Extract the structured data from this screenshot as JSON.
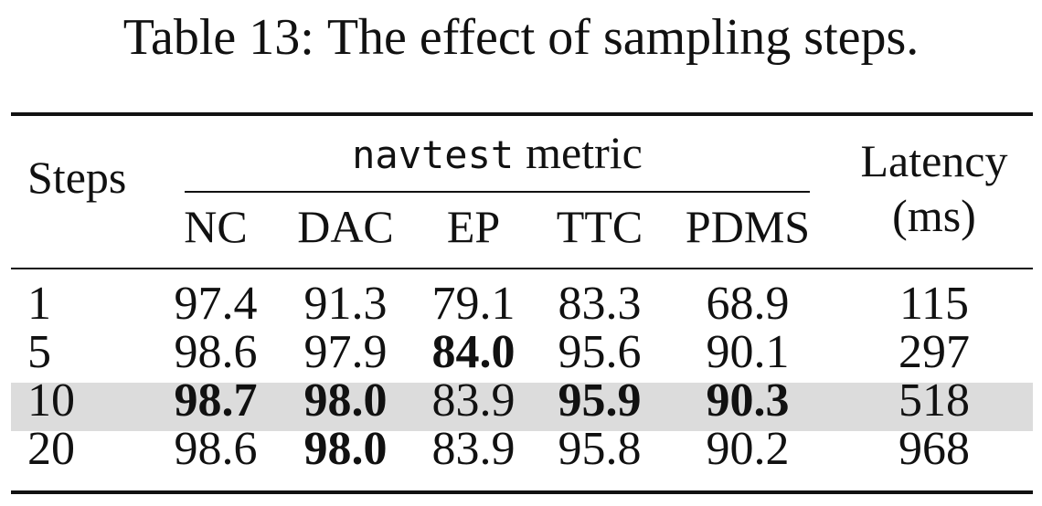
{
  "caption": {
    "label": "Table 13:",
    "text": "The effect of sampling steps."
  },
  "header": {
    "steps": "Steps",
    "group_mono": "navtest",
    "group_text": "metric",
    "latency_line1": "Latency",
    "latency_line2": "(ms)",
    "metrics": [
      "NC",
      "DAC",
      "EP",
      "TTC",
      "PDMS"
    ]
  },
  "rows": [
    {
      "steps": "1",
      "nc": "97.4",
      "dac": "91.3",
      "ep": "79.1",
      "ttc": "83.3",
      "pdms": "68.9",
      "latency": "115"
    },
    {
      "steps": "5",
      "nc": "98.6",
      "dac": "97.9",
      "ep": "84.0",
      "ttc": "95.6",
      "pdms": "90.1",
      "latency": "297"
    },
    {
      "steps": "10",
      "nc": "98.7",
      "dac": "98.0",
      "ep": "83.9",
      "ttc": "95.9",
      "pdms": "90.3",
      "latency": "518"
    },
    {
      "steps": "20",
      "nc": "98.6",
      "dac": "98.0",
      "ep": "83.9",
      "ttc": "95.8",
      "pdms": "90.2",
      "latency": "968"
    }
  ],
  "bold_cells": [
    {
      "row": 1,
      "col": "ep"
    },
    {
      "row": 2,
      "col": "nc"
    },
    {
      "row": 2,
      "col": "dac"
    },
    {
      "row": 2,
      "col": "ttc"
    },
    {
      "row": 2,
      "col": "pdms"
    },
    {
      "row": 3,
      "col": "dac"
    }
  ],
  "highlighted_row": 2,
  "colors": {
    "text": "#111111",
    "highlight": "#dcdcdc",
    "rule": "#111111"
  }
}
